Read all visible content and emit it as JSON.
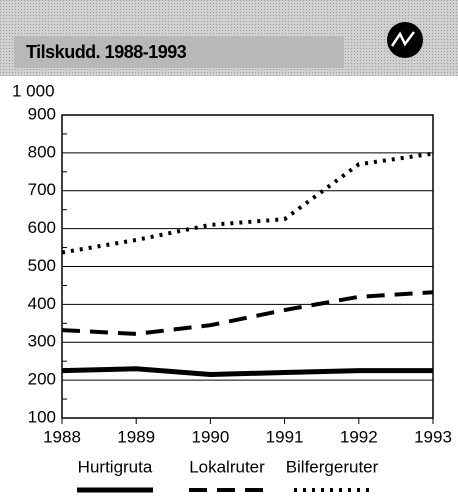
{
  "chart_data": {
    "type": "line",
    "title": "Tilskudd. 1988-1993",
    "y_label": "1 000",
    "x": [
      1988,
      1989,
      1990,
      1991,
      1992,
      1993
    ],
    "xlim": [
      1988,
      1993
    ],
    "xticks": [
      1988,
      1989,
      1990,
      1991,
      1992,
      1993
    ],
    "ylim": [
      100,
      900
    ],
    "yticks": [
      100,
      200,
      300,
      400,
      500,
      600,
      700,
      800,
      900
    ],
    "grid": true,
    "legend": "bottom",
    "series": [
      {
        "name": "Hurtigruta",
        "color": "#000000",
        "style": "solid",
        "values": [
          225,
          230,
          215,
          220,
          225,
          225
        ]
      },
      {
        "name": "Lokalruter",
        "color": "#000000",
        "style": "dashed",
        "values": [
          332,
          322,
          345,
          385,
          420,
          432
        ]
      },
      {
        "name": "Bilfergeruter",
        "color": "#000000",
        "style": "dotted",
        "values": [
          537,
          570,
          610,
          625,
          770,
          798
        ]
      }
    ]
  }
}
